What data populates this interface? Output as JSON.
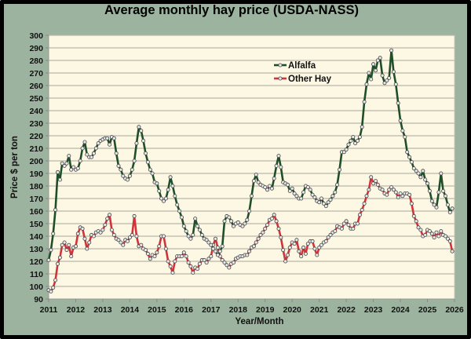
{
  "chart_data": {
    "type": "line",
    "title": "Average monthly hay price (USDA-NASS)",
    "xlabel": "Year/Month",
    "ylabel": "Price $ per ton",
    "ylim": [
      90,
      300
    ],
    "y_ticks": [
      "90",
      "100",
      "110",
      "120",
      "130",
      "140",
      "150",
      "160",
      "170",
      "180",
      "190",
      "200",
      "210",
      "220",
      "230",
      "240",
      "250",
      "260",
      "270",
      "280",
      "290",
      "300"
    ],
    "xlim": [
      2011,
      2026
    ],
    "x_ticks": [
      "2011",
      "2012",
      "2013",
      "2014",
      "2015",
      "2016",
      "2017",
      "2018",
      "2019",
      "2020",
      "2021",
      "2022",
      "2023",
      "2024",
      "2025",
      "2026"
    ],
    "grid": "horizontal",
    "legend_position": "top-center",
    "x_start": "2011-01",
    "x_step": "month",
    "series": [
      {
        "name": "Alfalfa",
        "color": "#1f4f2a",
        "values": [
          121,
          129,
          142,
          161,
          191,
          185,
          198,
          196,
          198,
          204,
          193,
          195,
          193,
          194,
          200,
          210,
          215,
          205,
          203,
          203,
          206,
          210,
          214,
          216,
          217,
          218,
          218,
          213,
          219,
          218,
          206,
          196,
          193,
          188,
          186,
          185,
          188,
          193,
          200,
          214,
          227,
          224,
          216,
          206,
          199,
          193,
          190,
          183,
          182,
          176,
          170,
          168,
          170,
          177,
          187,
          180,
          172,
          165,
          160,
          155,
          148,
          144,
          140,
          138,
          141,
          154,
          148,
          145,
          141,
          138,
          137,
          135,
          133,
          130,
          128,
          125,
          128,
          132,
          152,
          156,
          155,
          152,
          148,
          150,
          151,
          149,
          148,
          150,
          153,
          160,
          172,
          184,
          189,
          183,
          181,
          180,
          179,
          177,
          180,
          178,
          186,
          196,
          204,
          195,
          183,
          182,
          181,
          176,
          178,
          174,
          172,
          170,
          170,
          175,
          180,
          179,
          177,
          173,
          171,
          168,
          167,
          170,
          166,
          164,
          167,
          169,
          172,
          175,
          181,
          193,
          207,
          207,
          209,
          213,
          216,
          219,
          214,
          216,
          219,
          227,
          247,
          261,
          270,
          265,
          277,
          272,
          280,
          282,
          268,
          262,
          264,
          266,
          288,
          271,
          261,
          246,
          232,
          224,
          219,
          207,
          203,
          199,
          194,
          192,
          190,
          187,
          192,
          185,
          182,
          176,
          168,
          165,
          163,
          175,
          190,
          176,
          172,
          165,
          159,
          162
        ]
      },
      {
        "name": "Other Hay",
        "color": "#d0343a",
        "values": [
          97,
          96,
          99,
          105,
          118,
          123,
          133,
          135,
          129,
          133,
          124,
          131,
          132,
          142,
          147,
          146,
          138,
          130,
          135,
          141,
          140,
          143,
          144,
          143,
          145,
          149,
          154,
          157,
          145,
          141,
          138,
          137,
          135,
          133,
          137,
          136,
          139,
          141,
          156,
          140,
          132,
          133,
          130,
          129,
          126,
          122,
          125,
          124,
          127,
          132,
          140,
          140,
          130,
          120,
          116,
          111,
          120,
          124,
          124,
          124,
          127,
          124,
          119,
          116,
          111,
          115,
          114,
          118,
          121,
          121,
          119,
          122,
          124,
          133,
          138,
          131,
          124,
          121,
          119,
          117,
          115,
          118,
          119,
          122,
          123,
          124,
          124,
          125,
          125,
          128,
          131,
          132,
          135,
          138,
          141,
          143,
          146,
          149,
          153,
          154,
          157,
          152,
          146,
          139,
          129,
          120,
          125,
          131,
          135,
          134,
          137,
          128,
          124,
          131,
          126,
          134,
          136,
          136,
          130,
          125,
          131,
          133,
          135,
          136,
          139,
          141,
          143,
          144,
          148,
          147,
          146,
          150,
          152,
          149,
          146,
          146,
          150,
          150,
          157,
          161,
          166,
          172,
          177,
          187,
          182,
          184,
          181,
          178,
          177,
          174,
          173,
          177,
          179,
          177,
          175,
          171,
          174,
          172,
          174,
          174,
          173,
          166,
          156,
          152,
          147,
          145,
          140,
          141,
          145,
          144,
          142,
          139,
          143,
          140,
          144,
          141,
          140,
          138,
          136,
          128
        ]
      }
    ]
  }
}
